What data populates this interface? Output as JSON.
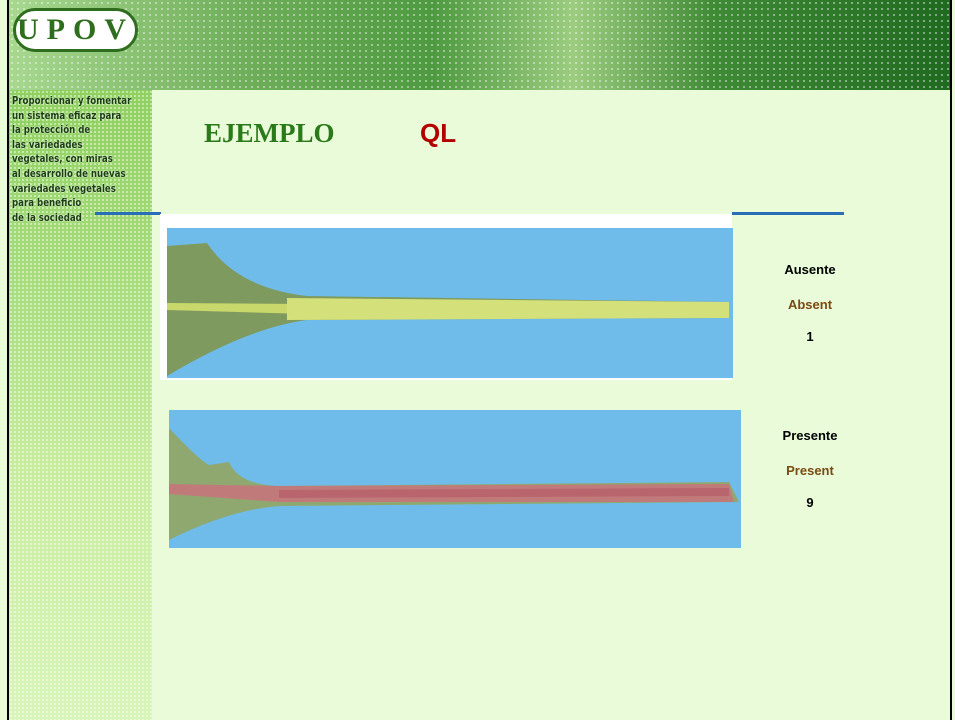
{
  "header": {
    "logo": "UPOV"
  },
  "sidebar": {
    "lines": [
      "Proporcionar y fomentar",
      "un sistema eficaz para",
      "la protección de",
      "las variedades",
      "vegetales, con miras",
      "al desarrollo de nuevas",
      "variedades vegetales",
      "para beneficio",
      "de la sociedad"
    ]
  },
  "title": {
    "text": "EJEMPLO",
    "tag": "QL"
  },
  "examples": [
    {
      "label_es": "Ausente",
      "label_en": "Absent",
      "note": 1
    },
    {
      "label_es": "Presente",
      "label_en": "Present",
      "note": 9
    }
  ]
}
